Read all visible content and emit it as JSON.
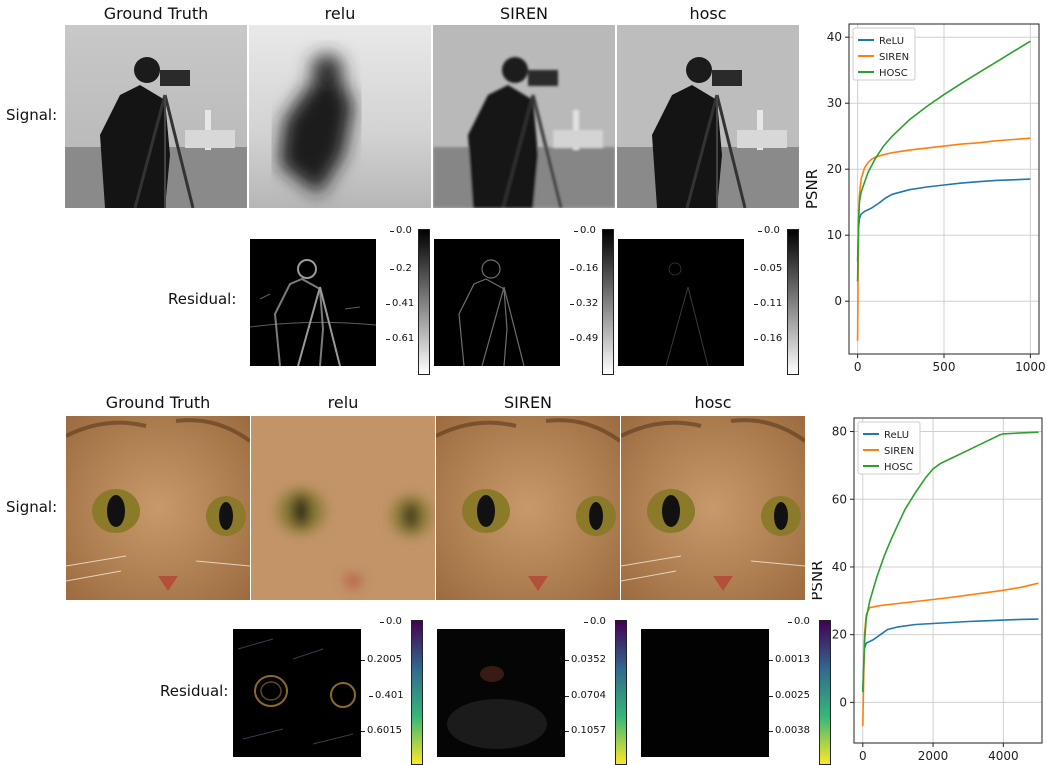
{
  "figures": [
    {
      "row_label_signal": "Signal:",
      "row_label_residual": "Residual:",
      "columns": [
        "Ground Truth",
        "relu",
        "SIREN",
        "hosc"
      ],
      "colorbars": [
        {
          "colormap": "gray",
          "ticks": [
            "0.0",
            "0.2",
            "0.41",
            "0.61"
          ]
        },
        {
          "colormap": "gray",
          "ticks": [
            "0.0",
            "0.16",
            "0.32",
            "0.49"
          ]
        },
        {
          "colormap": "gray",
          "ticks": [
            "0.0",
            "0.05",
            "0.11",
            "0.16"
          ]
        }
      ]
    },
    {
      "row_label_signal": "Signal:",
      "row_label_residual": "Residual:",
      "columns": [
        "Ground Truth",
        "relu",
        "SIREN",
        "hosc"
      ],
      "colorbars": [
        {
          "colormap": "viridis_r",
          "ticks": [
            "0.0",
            "0.2005",
            "0.401",
            "0.6015"
          ]
        },
        {
          "colormap": "viridis_r",
          "ticks": [
            "0.0",
            "0.0352",
            "0.0704",
            "0.1057"
          ]
        },
        {
          "colormap": "viridis_r",
          "ticks": [
            "0.0",
            "0.0013",
            "0.0025",
            "0.0038"
          ]
        }
      ]
    }
  ],
  "chart_data": [
    {
      "type": "line",
      "title": "",
      "xlabel": "",
      "ylabel": "PSNR",
      "xlim": [
        -50,
        1050
      ],
      "ylim": [
        -8,
        42
      ],
      "xticks": [
        0,
        500,
        1000
      ],
      "yticks": [
        0,
        10,
        20,
        30,
        40
      ],
      "grid": true,
      "legend": "top-left",
      "series": [
        {
          "name": "ReLU",
          "color": "#1f77b4",
          "points": [
            [
              0,
              6
            ],
            [
              5,
              11
            ],
            [
              10,
              12.5
            ],
            [
              20,
              13.2
            ],
            [
              40,
              13.6
            ],
            [
              80,
              14.1
            ],
            [
              120,
              14.8
            ],
            [
              160,
              15.6
            ],
            [
              200,
              16.2
            ],
            [
              300,
              16.9
            ],
            [
              400,
              17.3
            ],
            [
              500,
              17.6
            ],
            [
              600,
              17.9
            ],
            [
              700,
              18.1
            ],
            [
              800,
              18.3
            ],
            [
              900,
              18.4
            ],
            [
              1000,
              18.5
            ]
          ]
        },
        {
          "name": "SIREN",
          "color": "#ff7f0e",
          "points": [
            [
              0,
              -6
            ],
            [
              5,
              12
            ],
            [
              10,
              16
            ],
            [
              20,
              18.5
            ],
            [
              40,
              20.2
            ],
            [
              60,
              21
            ],
            [
              80,
              21.5
            ],
            [
              100,
              21.8
            ],
            [
              150,
              22.2
            ],
            [
              200,
              22.5
            ],
            [
              300,
              22.9
            ],
            [
              400,
              23.2
            ],
            [
              500,
              23.5
            ],
            [
              600,
              23.8
            ],
            [
              700,
              24
            ],
            [
              800,
              24.3
            ],
            [
              900,
              24.5
            ],
            [
              1000,
              24.7
            ]
          ]
        },
        {
          "name": "HOSC",
          "color": "#2ca02c",
          "points": [
            [
              0,
              3
            ],
            [
              5,
              12
            ],
            [
              10,
              15
            ],
            [
              20,
              16.5
            ],
            [
              40,
              18
            ],
            [
              60,
              19.5
            ],
            [
              80,
              20.5
            ],
            [
              100,
              21.5
            ],
            [
              150,
              23.5
            ],
            [
              200,
              25
            ],
            [
              300,
              27.5
            ],
            [
              400,
              29.5
            ],
            [
              500,
              31.3
            ],
            [
              600,
              33
            ],
            [
              700,
              34.6
            ],
            [
              800,
              36.2
            ],
            [
              900,
              37.8
            ],
            [
              1000,
              39.4
            ]
          ]
        }
      ]
    },
    {
      "type": "line",
      "title": "",
      "xlabel": "",
      "ylabel": "PSNR",
      "xlim": [
        -250,
        5100
      ],
      "ylim": [
        -12,
        84
      ],
      "xticks": [
        0,
        2000,
        4000
      ],
      "yticks": [
        0,
        20,
        40,
        60,
        80
      ],
      "grid": true,
      "legend": "top-left",
      "series": [
        {
          "name": "ReLU",
          "color": "#1f77b4",
          "points": [
            [
              0,
              3
            ],
            [
              50,
              16
            ],
            [
              100,
              17.5
            ],
            [
              300,
              18.5
            ],
            [
              500,
              20
            ],
            [
              700,
              21.5
            ],
            [
              1000,
              22.3
            ],
            [
              1500,
              23
            ],
            [
              2000,
              23.3
            ],
            [
              2500,
              23.6
            ],
            [
              3000,
              23.9
            ],
            [
              3500,
              24.1
            ],
            [
              4000,
              24.3
            ],
            [
              4500,
              24.5
            ],
            [
              5000,
              24.6
            ]
          ]
        },
        {
          "name": "SIREN",
          "color": "#ff7f0e",
          "points": [
            [
              0,
              -7
            ],
            [
              50,
              20
            ],
            [
              100,
              26
            ],
            [
              200,
              28
            ],
            [
              500,
              28.6
            ],
            [
              1000,
              29.2
            ],
            [
              1500,
              29.8
            ],
            [
              2000,
              30.4
            ],
            [
              2500,
              31
            ],
            [
              3000,
              31.7
            ],
            [
              3500,
              32.4
            ],
            [
              4000,
              33.1
            ],
            [
              4500,
              34
            ],
            [
              5000,
              35.2
            ]
          ]
        },
        {
          "name": "HOSC",
          "color": "#2ca02c",
          "points": [
            [
              0,
              3
            ],
            [
              50,
              18
            ],
            [
              100,
              25
            ],
            [
              200,
              30
            ],
            [
              400,
              37
            ],
            [
              600,
              43
            ],
            [
              800,
              48
            ],
            [
              1000,
              52.5
            ],
            [
              1200,
              57
            ],
            [
              1500,
              62
            ],
            [
              1800,
              66.5
            ],
            [
              2000,
              69
            ],
            [
              2200,
              70.5
            ],
            [
              2500,
              72
            ],
            [
              3000,
              74.5
            ],
            [
              3500,
              77
            ],
            [
              3900,
              79
            ],
            [
              4000,
              79.3
            ],
            [
              4500,
              79.6
            ],
            [
              5000,
              79.8
            ]
          ]
        }
      ]
    }
  ]
}
